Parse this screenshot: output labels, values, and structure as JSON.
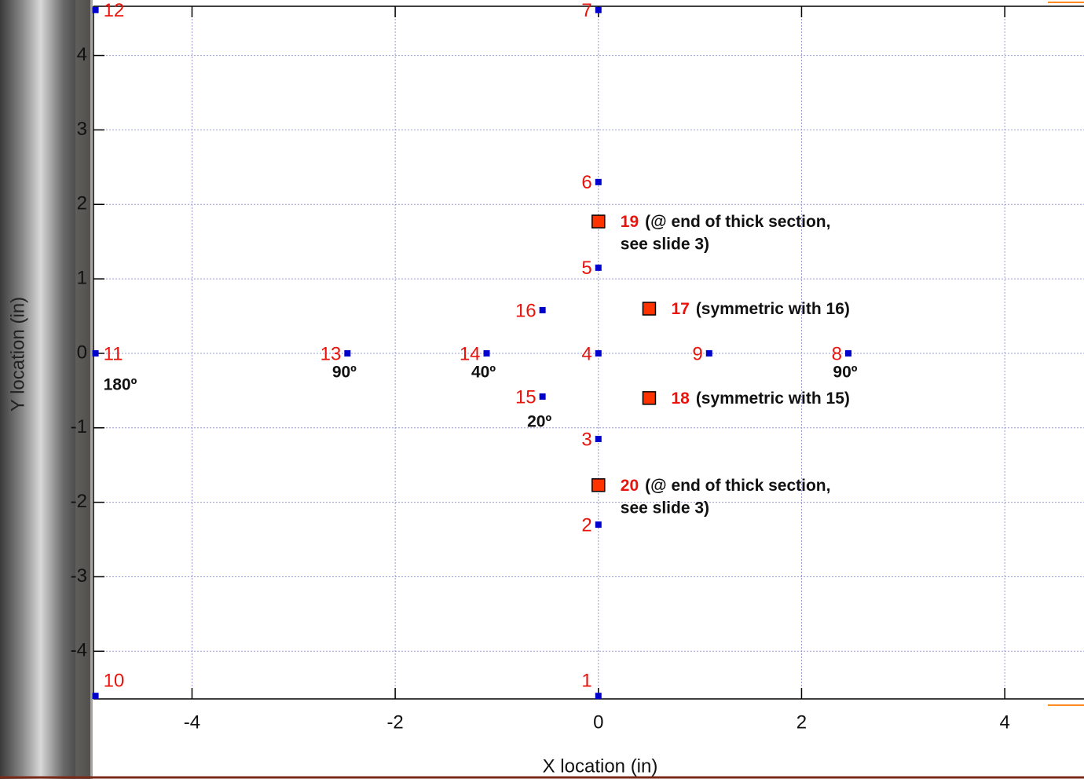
{
  "chart_data": {
    "type": "scatter",
    "x_label": "X location (in)",
    "y_label": "Y location (in)",
    "xlim": [
      -4.97,
      4.78
    ],
    "ylim": [
      -4.64,
      4.66
    ],
    "xticks": [
      -4,
      -2,
      0,
      2,
      4
    ],
    "yticks": [
      -4,
      -3,
      -2,
      -1,
      0,
      1,
      2,
      3,
      4
    ],
    "grid": true,
    "series": [
      {
        "color": "#0000cc",
        "marker_size": 8,
        "x": [
          0,
          0,
          0,
          0,
          0,
          0,
          0,
          2.46,
          1.09,
          -4.95,
          -4.95,
          -4.95,
          -2.47,
          -1.1,
          -0.55,
          -0.55
        ],
        "values": [
          -4.6,
          -2.3,
          -1.15,
          0,
          1.15,
          2.3,
          4.61,
          0,
          0,
          -4.6,
          0,
          4.61,
          0,
          0,
          -0.58,
          0.58
        ],
        "point_labels": [
          "1",
          "2",
          "3",
          "4",
          "5",
          "6",
          "7",
          "8",
          "9",
          "10",
          "11",
          "12",
          "13",
          "14",
          "15",
          "16"
        ],
        "angles": [
          null,
          null,
          null,
          null,
          null,
          null,
          null,
          "90º",
          null,
          null,
          "180º",
          null,
          "90º",
          "40º",
          "20º",
          null
        ]
      },
      {
        "color": "#ff3300",
        "marker_size": 16,
        "x": [
          0.5,
          0.5,
          0,
          0
        ],
        "values": [
          0.6,
          -0.6,
          1.77,
          -1.77
        ],
        "point_labels": [
          "17",
          "18",
          "19",
          "20"
        ],
        "notes": [
          [
            "(symmetric with 16)"
          ],
          [
            "(symmetric with 15)"
          ],
          [
            "(@ end of thick section,",
            "see slide 3)"
          ],
          [
            "(@ end of thick section,",
            "see slide 3)"
          ]
        ]
      }
    ]
  }
}
